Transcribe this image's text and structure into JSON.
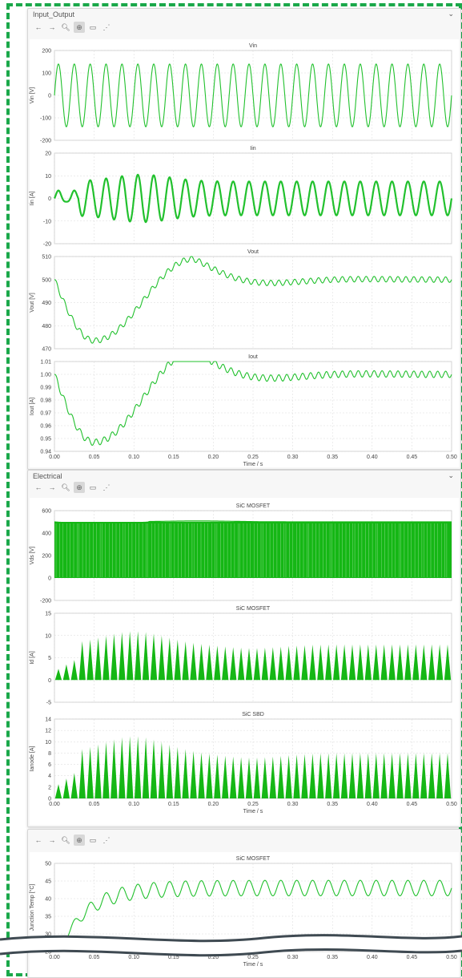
{
  "colors": {
    "trace": "#22c12e",
    "trace_dark": "#15b715",
    "frame": "#1aa84a",
    "grid": "#d9d9d9"
  },
  "panels": {
    "io": {
      "title": "Input_Output"
    },
    "electrical": {
      "title": "Electrical"
    }
  },
  "toolbar": [
    "back-icon",
    "forward-icon",
    "zoom-icon",
    "zoom-fit-icon",
    "pan-icon",
    "cursor-icon"
  ],
  "chart_data": [
    {
      "id": "vin",
      "type": "line",
      "title": "Vin",
      "ylabel": "Vin [V]",
      "ylim": [
        -200,
        200
      ],
      "yticks": [
        -200,
        -100,
        0,
        100,
        200
      ],
      "xlim": [
        0,
        0.5
      ],
      "xticks": [],
      "series": [
        {
          "kind": "sine",
          "freq_hz": 50,
          "amplitude": 140,
          "offset": 0,
          "settle": false,
          "dense": false
        }
      ]
    },
    {
      "id": "iin",
      "type": "line",
      "title": "Iin",
      "ylabel": "Iin [A]",
      "ylim": [
        -20,
        20
      ],
      "yticks": [
        -20,
        -10,
        0,
        10,
        20
      ],
      "xlim": [
        0,
        0.5
      ],
      "xticks": [],
      "series": [
        {
          "kind": "sine",
          "freq_hz": 50,
          "amplitude": 7.5,
          "peak_amplitude": 10.5,
          "peak_time": 0.11,
          "settle": true,
          "dense": false
        }
      ]
    },
    {
      "id": "vout",
      "type": "line",
      "title": "Vout",
      "ylabel": "Vout [V]",
      "ylim": [
        470,
        510
      ],
      "yticks": [
        470,
        480,
        490,
        500,
        510
      ],
      "xlim": [
        0,
        0.5
      ],
      "xticks": [],
      "series": [
        {
          "kind": "response",
          "start": 500,
          "final": 500,
          "trough": 473.5,
          "trough_time": 0.05,
          "peak": 509,
          "peak_time": 0.175,
          "ripple": 1.2,
          "ripple_hz": 100
        }
      ]
    },
    {
      "id": "iout",
      "type": "line",
      "title": "Iout",
      "ylabel": "Iout [A]",
      "ylim": [
        0.94,
        1.01
      ],
      "yticks": [
        0.94,
        0.95,
        0.96,
        0.97,
        0.98,
        0.99,
        1.0,
        1.01
      ],
      "xlim": [
        0,
        0.5
      ],
      "xticks": [
        "0.00",
        "0.05",
        "0.10",
        "0.15",
        "0.20",
        "0.25",
        "0.30",
        "0.35",
        "0.40",
        "0.45",
        "0.50"
      ],
      "xlabel": "Time / s",
      "series": [
        {
          "kind": "response",
          "start": 1.0,
          "final": 1.0,
          "trough": 0.947,
          "trough_time": 0.05,
          "peak": 1.018,
          "peak_time": 0.175,
          "ripple": 0.0025,
          "ripple_hz": 100
        }
      ]
    },
    {
      "id": "vds",
      "type": "area",
      "title": "SiC MOSFET",
      "ylabel": "Vds [V]",
      "ylim": [
        -200,
        600
      ],
      "yticks": [
        -200,
        0,
        200,
        400,
        600
      ],
      "xlim": [
        0,
        0.5
      ],
      "xticks": [],
      "series": [
        {
          "kind": "band",
          "low": 0,
          "high": 500
        }
      ]
    },
    {
      "id": "id",
      "type": "area",
      "title": "SiC MOSFET",
      "ylabel": "Id [A]",
      "ylim": [
        -5,
        15
      ],
      "yticks": [
        -5,
        0,
        5,
        10,
        15
      ],
      "xlim": [
        0,
        0.5
      ],
      "xticks": [],
      "series": [
        {
          "kind": "pulses",
          "steady": 8,
          "peak": 11,
          "peak_time": 0.1,
          "hz": 100
        }
      ]
    },
    {
      "id": "ianode",
      "type": "area",
      "title": "SiC SBD",
      "ylabel": "Ianode [A]",
      "ylim": [
        0,
        14
      ],
      "yticks": [
        0,
        2,
        4,
        6,
        8,
        10,
        12,
        14
      ],
      "xlim": [
        0,
        0.5
      ],
      "xticks": [
        "0.00",
        "0.05",
        "0.10",
        "0.15",
        "0.20",
        "0.25",
        "0.30",
        "0.35",
        "0.40",
        "0.45",
        "0.50"
      ],
      "xlabel": "Time / s",
      "series": [
        {
          "kind": "pulses",
          "steady": 8,
          "peak": 11,
          "peak_time": 0.1,
          "hz": 100
        }
      ]
    },
    {
      "id": "tj",
      "type": "line",
      "title": "SiC MOSFET",
      "ylabel": "Junction Temp [°C]",
      "ylim": [
        25,
        50
      ],
      "yticks": [
        25,
        30,
        35,
        40,
        45,
        50
      ],
      "xlim": [
        0,
        0.5
      ],
      "xticks": [
        "0.00",
        "0.05",
        "0.10",
        "0.15",
        "0.20",
        "0.25",
        "0.30",
        "0.35",
        "0.40",
        "0.45",
        "0.50"
      ],
      "xlabel": "Time / s",
      "series": [
        {
          "kind": "thermal",
          "start": 22,
          "final": 43,
          "tau": 0.035,
          "ripple": 2.2,
          "ripple_hz": 50
        }
      ]
    }
  ]
}
